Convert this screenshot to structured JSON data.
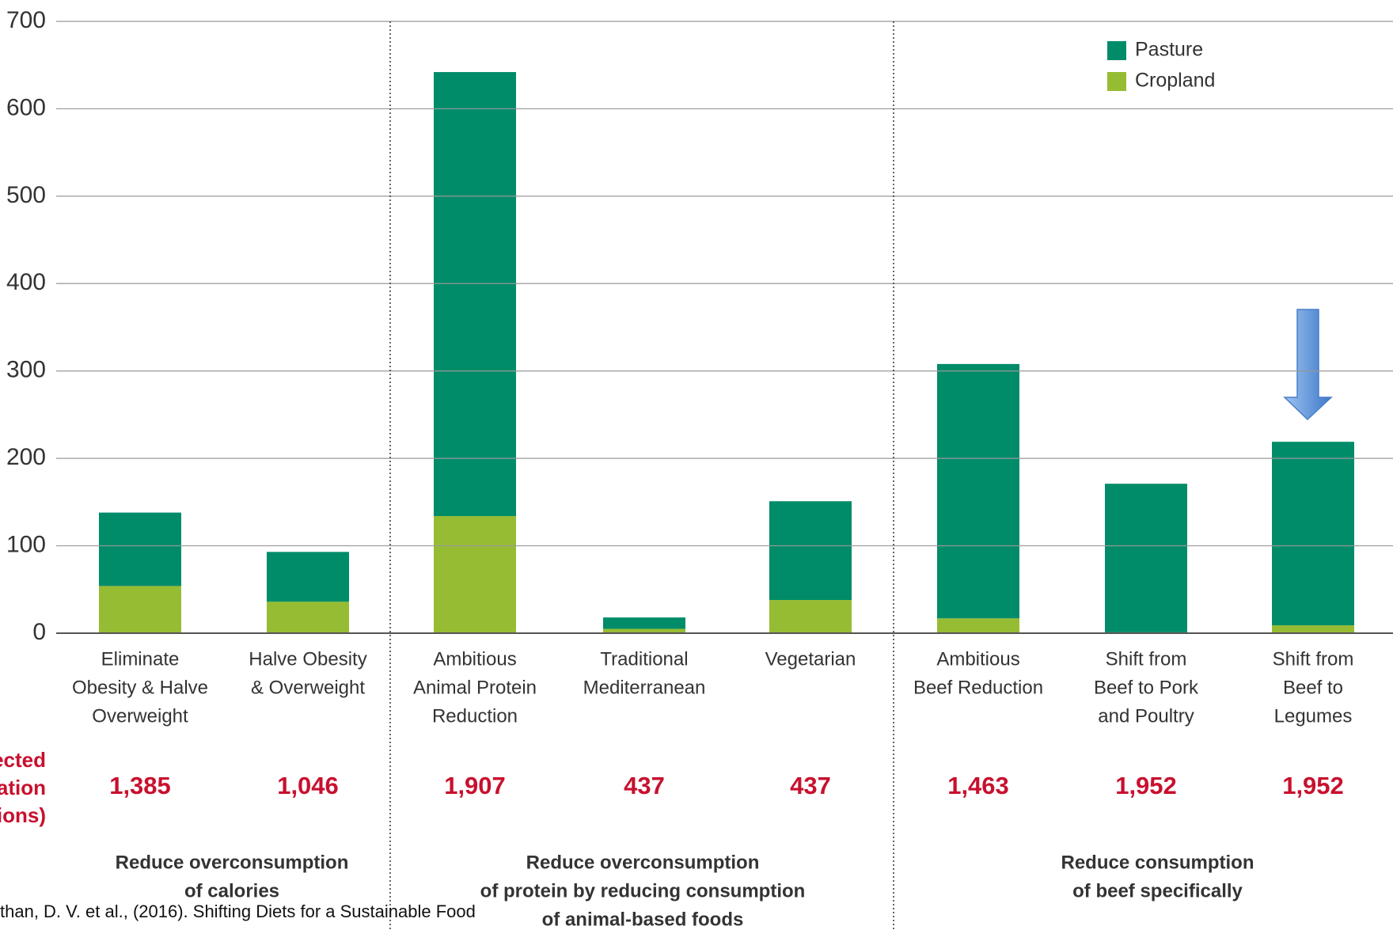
{
  "chart_data": {
    "type": "stacked_bar",
    "categories": [
      [
        "Eliminate",
        "Obesity & Halve",
        "Overweight"
      ],
      [
        "Halve Obesity",
        "& Overweight"
      ],
      [
        "Ambitious",
        "Animal Protein",
        "Reduction"
      ],
      [
        "Traditional",
        "Mediterranean"
      ],
      [
        "Vegetarian"
      ],
      [
        "Ambitious",
        "Beef Reduction"
      ],
      [
        "Shift from",
        "Beef to Pork",
        "and Poultry"
      ],
      [
        "Shift from",
        "Beef to",
        "Legumes"
      ]
    ],
    "series": [
      {
        "name": "Cropland",
        "color": "#96bc33",
        "values": [
          54,
          36,
          134,
          5,
          38,
          17,
          1,
          9
        ]
      },
      {
        "name": "Pasture",
        "color": "#008c69",
        "values": [
          84,
          57,
          508,
          13,
          113,
          291,
          170,
          210
        ]
      }
    ],
    "ylim": [
      0,
      700
    ],
    "yticks": [
      0,
      100,
      200,
      300,
      400,
      500,
      600,
      700
    ],
    "grid": true,
    "legend": "top-right",
    "row_label": [
      "ected",
      "ation",
      "ions)"
    ],
    "population": [
      "1,385",
      "1,046",
      "1,907",
      "437",
      "437",
      "1,463",
      "1,952",
      "1,952"
    ],
    "groups": [
      {
        "label": [
          "Reduce overconsumption",
          "of calories"
        ],
        "span": [
          0,
          1
        ]
      },
      {
        "label": [
          "Reduce overconsumption",
          "of protein by reducing consumption",
          "of animal-based foods"
        ],
        "span": [
          2,
          4
        ]
      },
      {
        "label": [
          "Reduce consumption",
          "of beef specifically"
        ],
        "span": [
          5,
          7
        ]
      }
    ],
    "source": "than, D. V. et al., (2016). Shifting Diets for a Sustainable Food"
  }
}
